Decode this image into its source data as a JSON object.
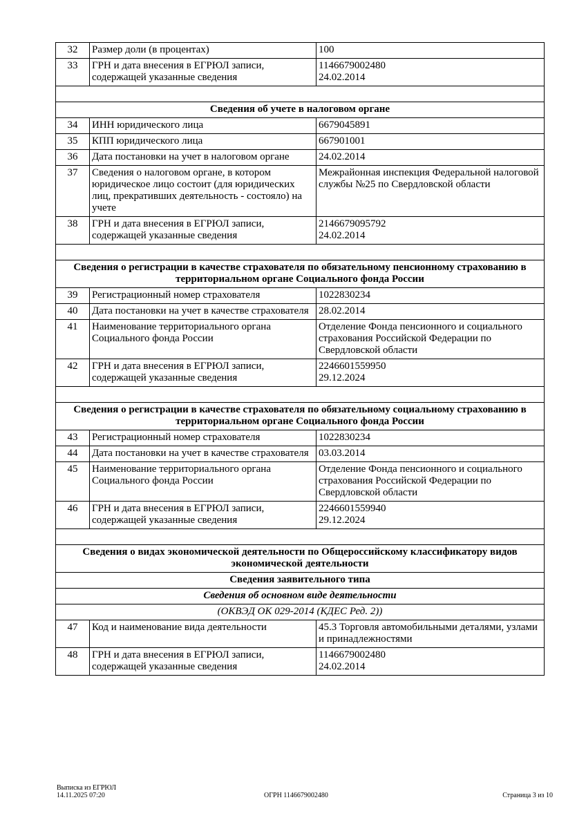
{
  "rows": [
    {
      "type": "data",
      "num": "32",
      "label": "Размер доли (в процентах)",
      "value": "100"
    },
    {
      "type": "data",
      "num": "33",
      "label": "ГРН и дата внесения в ЕГРЮЛ записи, содержащей указанные сведения",
      "value": "1146679002480\n24.02.2014"
    },
    {
      "type": "blank"
    },
    {
      "type": "header",
      "text": "Сведения об учете в налоговом органе"
    },
    {
      "type": "data",
      "num": "34",
      "label": "ИНН юридического лица",
      "value": "6679045891"
    },
    {
      "type": "data",
      "num": "35",
      "label": "КПП юридического лица",
      "value": "667901001"
    },
    {
      "type": "data",
      "num": "36",
      "label": "Дата постановки на учет в налоговом органе",
      "value": "24.02.2014"
    },
    {
      "type": "data",
      "num": "37",
      "label": "Сведения о налоговом органе, в котором юридическое лицо состоит (для юридических лиц, прекративших деятельность - состояло) на учете",
      "value": "Межрайонная инспекция Федеральной налоговой службы №25 по Свердловской области"
    },
    {
      "type": "data",
      "num": "38",
      "label": "ГРН и дата внесения в ЕГРЮЛ записи, содержащей указанные сведения",
      "value": "2146679095792\n24.02.2014"
    },
    {
      "type": "blank"
    },
    {
      "type": "header",
      "text": "Сведения о регистрации в качестве страхователя по обязательному пенсионному страхованию в территориальном органе Социального фонда России"
    },
    {
      "type": "data",
      "num": "39",
      "label": "Регистрационный номер страхователя",
      "value": "1022830234"
    },
    {
      "type": "data",
      "num": "40",
      "label": "Дата постановки на учет в качестве страхователя",
      "value": "28.02.2014"
    },
    {
      "type": "data",
      "num": "41",
      "label": "Наименование территориального органа Социального фонда России",
      "value": "Отделение Фонда пенсионного и социального страхования Российской Федерации по Свердловской области"
    },
    {
      "type": "data",
      "num": "42",
      "label": "ГРН и дата внесения в ЕГРЮЛ записи, содержащей указанные сведения",
      "value": "2246601559950\n29.12.2024"
    },
    {
      "type": "blank"
    },
    {
      "type": "header",
      "text": "Сведения о регистрации в качестве страхователя по обязательному социальному страхованию в территориальном органе Социального фонда России"
    },
    {
      "type": "data",
      "num": "43",
      "label": "Регистрационный номер страхователя",
      "value": "1022830234"
    },
    {
      "type": "data",
      "num": "44",
      "label": "Дата постановки на учет в качестве страхователя",
      "value": "03.03.2014"
    },
    {
      "type": "data",
      "num": "45",
      "label": "Наименование территориального органа Социального фонда России",
      "value": "Отделение Фонда пенсионного и социального страхования Российской Федерации по Свердловской области"
    },
    {
      "type": "data",
      "num": "46",
      "label": "ГРН и дата внесения в ЕГРЮЛ записи, содержащей указанные сведения",
      "value": "2246601559940\n29.12.2024"
    },
    {
      "type": "blank"
    },
    {
      "type": "header",
      "text": "Сведения о видах экономической деятельности по Общероссийскому классификатору видов экономической деятельности"
    },
    {
      "type": "header",
      "text": "Сведения заявительного типа"
    },
    {
      "type": "italic-bold",
      "text": "Сведения об основном виде деятельности"
    },
    {
      "type": "italic",
      "text": "(ОКВЭД ОК 029-2014 (КДЕС Ред. 2))"
    },
    {
      "type": "data",
      "num": "47",
      "label": "Код и наименование вида деятельности",
      "value": "45.3 Торговля автомобильными деталями, узлами и принадлежностями"
    },
    {
      "type": "data",
      "num": "48",
      "label": "ГРН и дата внесения в ЕГРЮЛ записи, содержащей указанные сведения",
      "value": "1146679002480\n24.02.2014"
    }
  ],
  "footer": {
    "doc_name": "Выписка из ЕГРЮЛ",
    "datetime": "14.11.2025 07:20",
    "ogrn": "ОГРН 1146679002480",
    "page": "Страница 3 из 10"
  }
}
